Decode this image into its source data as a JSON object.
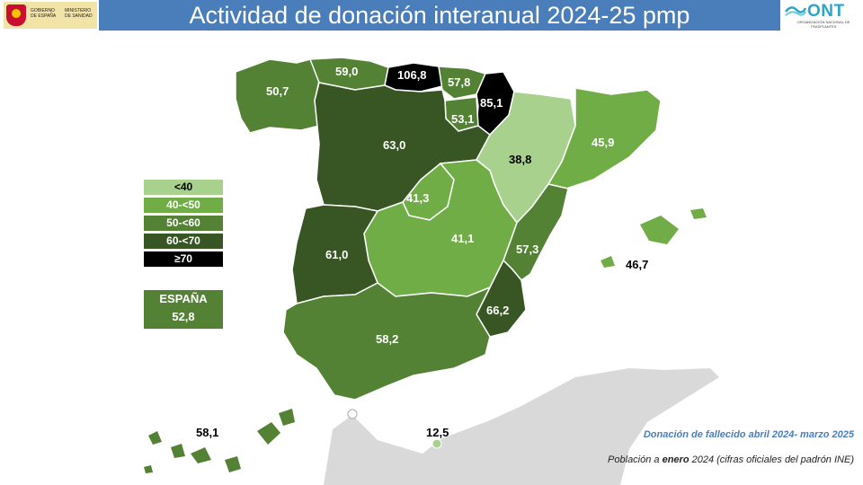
{
  "header": {
    "title": "Actividad de donación interanual 2024-25 pmp",
    "gov_text": "GOBIERNO DE ESPAÑA",
    "ministry_text": "MINISTERIO DE SANIDAD",
    "ont_name": "ONT",
    "ont_subtitle": "ORGANIZACIÓN NACIONAL DE TRASPLANTES"
  },
  "colors": {
    "lt40": "#a9d18e",
    "40_50": "#70ad47",
    "50_60": "#548235",
    "60_70": "#375623",
    "ge70": "#000000",
    "title_bar": "#4a7ebb"
  },
  "legend": {
    "items": [
      {
        "label": "<40",
        "color": "#a9d18e"
      },
      {
        "label": "40-<50",
        "color": "#70ad47"
      },
      {
        "label": "50-<60",
        "color": "#548235"
      },
      {
        "label": "60-<70",
        "color": "#375623"
      },
      {
        "label": "≥70",
        "color": "#000000"
      }
    ]
  },
  "national": {
    "label": "ESPAÑA",
    "value": "52,8"
  },
  "regions": {
    "galicia": "50,7",
    "asturias": "59,0",
    "cantabria": "106,8",
    "pais_vasco": "57,8",
    "navarra": "85,1",
    "la_rioja": "53,1",
    "castilla_leon": "63,0",
    "aragon": "38,8",
    "cataluna": "45,9",
    "madrid": "41,3",
    "castilla_la_mancha": "41,1",
    "extremadura": "61,0",
    "valencia": "57,3",
    "murcia": "66,2",
    "andalucia": "58,2",
    "baleares": "46,7",
    "canarias": "58,1",
    "ceuta_melilla": "12,5"
  },
  "notes": {
    "period": "Donación de fallecido abril 2024- marzo 2025",
    "population_prefix": "Población a ",
    "population_bold": "enero",
    "population_suffix": " 2024 (cifras oficiales del padrón INE)"
  }
}
